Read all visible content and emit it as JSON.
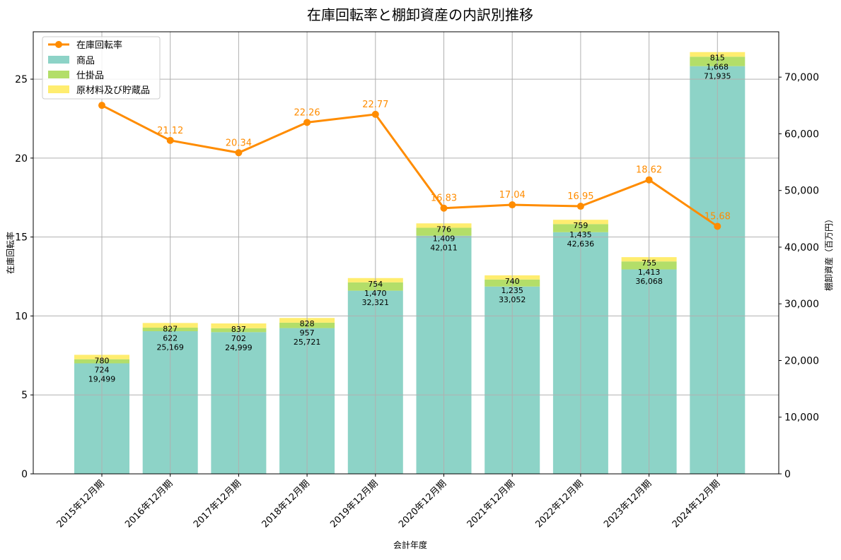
{
  "chart_data": {
    "type": "bar+line",
    "title": "在庫回転率と棚卸資産の内訳別推移",
    "xlabel": "会計年度",
    "ylabel_left": "在庫回転率",
    "ylabel_right": "棚卸資産（百万円）",
    "ylim_left": [
      0,
      28
    ],
    "ylim_right": [
      0,
      78000
    ],
    "yticks_left": [
      "0",
      "5",
      "10",
      "15",
      "20",
      "25"
    ],
    "yticks_right": [
      "0",
      "10,000",
      "20,000",
      "30,000",
      "40,000",
      "50,000",
      "60,000",
      "70,000"
    ],
    "categories": [
      "2015年12月期",
      "2016年12月期",
      "2017年12月期",
      "2018年12月期",
      "2019年12月期",
      "2020年12月期",
      "2021年12月期",
      "2022年12月期",
      "2023年12月期",
      "2024年12月期"
    ],
    "series": [
      {
        "name": "商品",
        "type": "bar",
        "color": "#8dd3c7",
        "values": [
          19499,
          25169,
          24999,
          25721,
          32321,
          42011,
          33052,
          42636,
          36068,
          71935
        ],
        "labels": [
          "19,499",
          "25,169",
          "24,999",
          "25,721",
          "32,321",
          "42,011",
          "33,052",
          "42,636",
          "36,068",
          "71,935"
        ]
      },
      {
        "name": "仕掛品",
        "type": "bar",
        "color": "#b3de69",
        "values": [
          724,
          622,
          702,
          957,
          1470,
          1409,
          1235,
          1435,
          1413,
          1668
        ],
        "labels": [
          "724",
          "622",
          "702",
          "957",
          "1,470",
          "1,409",
          "1,235",
          "1,435",
          "1,413",
          "1,668"
        ]
      },
      {
        "name": "原材料及び貯蔵品",
        "type": "bar",
        "color": "#ffed6f",
        "values": [
          780,
          827,
          837,
          828,
          754,
          776,
          740,
          759,
          755,
          815
        ],
        "labels": [
          "780",
          "827",
          "837",
          "828",
          "754",
          "776",
          "740",
          "759",
          "755",
          "815"
        ]
      },
      {
        "name": "在庫回転率",
        "type": "line",
        "color": "#ff8c00",
        "values": [
          23.34,
          21.12,
          20.34,
          22.26,
          22.77,
          16.83,
          17.04,
          16.95,
          18.62,
          15.68
        ],
        "labels": [
          "23.34",
          "21.12",
          "20.34",
          "22.26",
          "22.77",
          "16.83",
          "17.04",
          "16.95",
          "18.62",
          "15.68"
        ]
      }
    ],
    "legend": "top-left",
    "grid": true
  }
}
